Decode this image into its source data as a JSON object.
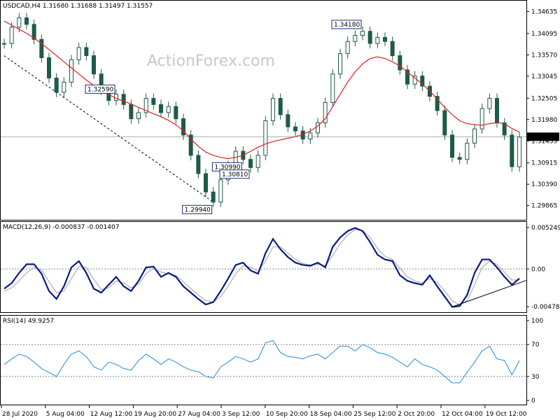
{
  "header": {
    "symbol_line": "USDCAD,H4  1.31680 1.31688 1.31497 1.31557",
    "watermark": "ActionForex.com"
  },
  "chart_data": [
    {
      "type": "candlestick",
      "title": "USDCAD,H4  1.31680 1.31688 1.31497 1.31557",
      "ylim": [
        1.2955,
        1.3485
      ],
      "y_ticks": [
        "1.34635",
        "1.34095",
        "1.33570",
        "1.33045",
        "1.32505",
        "1.31980",
        "1.31455",
        "1.30915",
        "1.30390",
        "1.29865"
      ],
      "current_price_label": "1.31557",
      "x_ticks": [
        "28 Jul 2020",
        "5 Aug 04:00",
        "12 Aug 12:00",
        "19 Aug 20:00",
        "27 Aug 04:00",
        "3 Sep 12:00",
        "10 Sep 20:00",
        "18 Sep 04:00",
        "25 Sep 12:00",
        "2 Oct 20:00",
        "12 Oct 04:00",
        "19 Oct 12:00"
      ],
      "price_series": [
        1.3385,
        1.3425,
        1.3448,
        1.3432,
        1.3395,
        1.335,
        1.33,
        1.3265,
        1.329,
        1.3345,
        1.3375,
        1.3355,
        1.331,
        1.327,
        1.3245,
        1.326,
        1.3235,
        1.32,
        1.3215,
        1.325,
        1.3235,
        1.3215,
        1.323,
        1.32,
        1.316,
        1.311,
        1.3065,
        1.302,
        1.2995,
        1.305,
        1.3085,
        1.312,
        1.31,
        1.308,
        1.311,
        1.3195,
        1.325,
        1.321,
        1.318,
        1.317,
        1.315,
        1.3165,
        1.319,
        1.324,
        1.331,
        1.336,
        1.339,
        1.3405,
        1.3415,
        1.3385,
        1.34,
        1.339,
        1.3355,
        1.332,
        1.3285,
        1.3305,
        1.328,
        1.3255,
        1.322,
        1.316,
        1.3105,
        1.31,
        1.314,
        1.3175,
        1.3225,
        1.325,
        1.319,
        1.316,
        1.3082,
        1.3155
      ],
      "ma_series": [
        1.344,
        1.343,
        1.342,
        1.341,
        1.3398,
        1.3385,
        1.337,
        1.3355,
        1.334,
        1.3325,
        1.331,
        1.3295,
        1.3282,
        1.327,
        1.326,
        1.325,
        1.3243,
        1.3236,
        1.3228,
        1.322,
        1.3212,
        1.3205,
        1.3196,
        1.3185,
        1.317,
        1.315,
        1.3132,
        1.3118,
        1.311,
        1.3105,
        1.3102,
        1.3105,
        1.311,
        1.312,
        1.313,
        1.3138,
        1.3144,
        1.3148,
        1.3152,
        1.3156,
        1.3162,
        1.317,
        1.3182,
        1.32,
        1.323,
        1.326,
        1.329,
        1.3315,
        1.3335,
        1.3348,
        1.3352,
        1.3348,
        1.334,
        1.333,
        1.3315,
        1.33,
        1.3285,
        1.3268,
        1.3248,
        1.3228,
        1.321,
        1.3195,
        1.3188,
        1.3185,
        1.3184,
        1.3188,
        1.319,
        1.3188,
        1.3176,
        1.3167
      ],
      "price_labels": [
        {
          "text": "1.34180",
          "value": 1.3418
        },
        {
          "text": "1.32590",
          "value": 1.3259
        },
        {
          "text": "1.30990",
          "value": 1.3099
        },
        {
          "text": "1.30810",
          "value": 1.3081
        },
        {
          "text": "1.29940",
          "value": 1.2994
        }
      ],
      "trendline": {
        "from": [
          0,
          1.3355
        ],
        "to": [
          28,
          1.2995
        ]
      }
    },
    {
      "type": "line",
      "title": "MACD(12,26,9) -0.000837 -0.001407",
      "ylim": [
        -0.0053,
        0.0057
      ],
      "y_ticks": [
        "0.005249",
        "0.00",
        "-0.004785"
      ],
      "zero_label": "0.00",
      "series": [
        {
          "values": [
            -0.0025,
            -0.0018,
            -0.0005,
            0.0006,
            0.0006,
            -0.0006,
            -0.0028,
            -0.0038,
            -0.0022,
            0.0002,
            0.001,
            -0.0005,
            -0.0025,
            -0.003,
            -0.002,
            -0.001,
            -0.0022,
            -0.0028,
            -0.0015,
            0.0002,
            0.0003,
            -0.001,
            -0.0005,
            -0.001,
            -0.0022,
            -0.003,
            -0.0038,
            -0.0045,
            -0.0042,
            -0.0028,
            -0.0012,
            0.0005,
            0.0008,
            -0.0002,
            -0.0006,
            0.002,
            0.0038,
            0.0025,
            0.0015,
            0.0008,
            0.0005,
            0.0004,
            0.0008,
            0.0002,
            0.0028,
            0.004,
            0.0048,
            0.0052,
            0.0048,
            0.0034,
            0.0018,
            0.0012,
            0.001,
            -0.0008,
            -0.0015,
            -0.0018,
            -0.002,
            -0.0008,
            -0.0022,
            -0.0035,
            -0.0048,
            -0.0047,
            -0.0033,
            -0.0005,
            0.0012,
            0.0012,
            0.0002,
            -0.001,
            -0.002,
            -0.0012
          ]
        },
        {
          "values": [
            -0.0028,
            -0.0024,
            -0.0015,
            -0.0005,
            0.0002,
            -0.0001,
            -0.0016,
            -0.003,
            -0.0028,
            -0.0012,
            0.0003,
            0.0002,
            -0.0013,
            -0.0026,
            -0.0024,
            -0.0015,
            -0.0018,
            -0.0024,
            -0.0019,
            -0.0006,
            0.0001,
            -0.0004,
            -0.0006,
            -0.0008,
            -0.0016,
            -0.0025,
            -0.0033,
            -0.004,
            -0.0042,
            -0.0035,
            -0.0022,
            -0.0006,
            0.0004,
            0.0002,
            -0.0003,
            0.001,
            0.0028,
            0.0028,
            0.002,
            0.0012,
            0.0007,
            0.0005,
            0.0006,
            0.0004,
            0.0017,
            0.0032,
            0.0043,
            0.005,
            0.0049,
            0.004,
            0.0026,
            0.0016,
            0.0012,
            0.0001,
            -0.001,
            -0.0015,
            -0.0018,
            -0.0012,
            -0.0017,
            -0.0028,
            -0.004,
            -0.0046,
            -0.004,
            -0.002,
            0.0002,
            0.001,
            0.0006,
            -0.0004,
            -0.0014,
            -0.0014
          ]
        }
      ],
      "trendline": {
        "from": [
          60,
          -0.0048
        ],
        "to": [
          69,
          -0.0018
        ]
      }
    },
    {
      "type": "line",
      "title": "RSI(14) 49.9257",
      "ylim": [
        0,
        100
      ],
      "y_ticks": [
        "100",
        "70",
        "30",
        "0"
      ],
      "levels": [
        70,
        30
      ],
      "series": [
        {
          "values": [
            45,
            52,
            58,
            55,
            48,
            40,
            35,
            30,
            45,
            58,
            62,
            55,
            42,
            38,
            48,
            45,
            40,
            38,
            50,
            58,
            52,
            45,
            52,
            48,
            42,
            38,
            36,
            30,
            28,
            42,
            48,
            55,
            52,
            48,
            52,
            72,
            75,
            60,
            55,
            54,
            52,
            56,
            58,
            52,
            60,
            68,
            68,
            62,
            70,
            66,
            60,
            58,
            54,
            48,
            42,
            52,
            45,
            42,
            38,
            30,
            22,
            22,
            35,
            48,
            62,
            68,
            52,
            50,
            32,
            50
          ]
        }
      ]
    }
  ]
}
